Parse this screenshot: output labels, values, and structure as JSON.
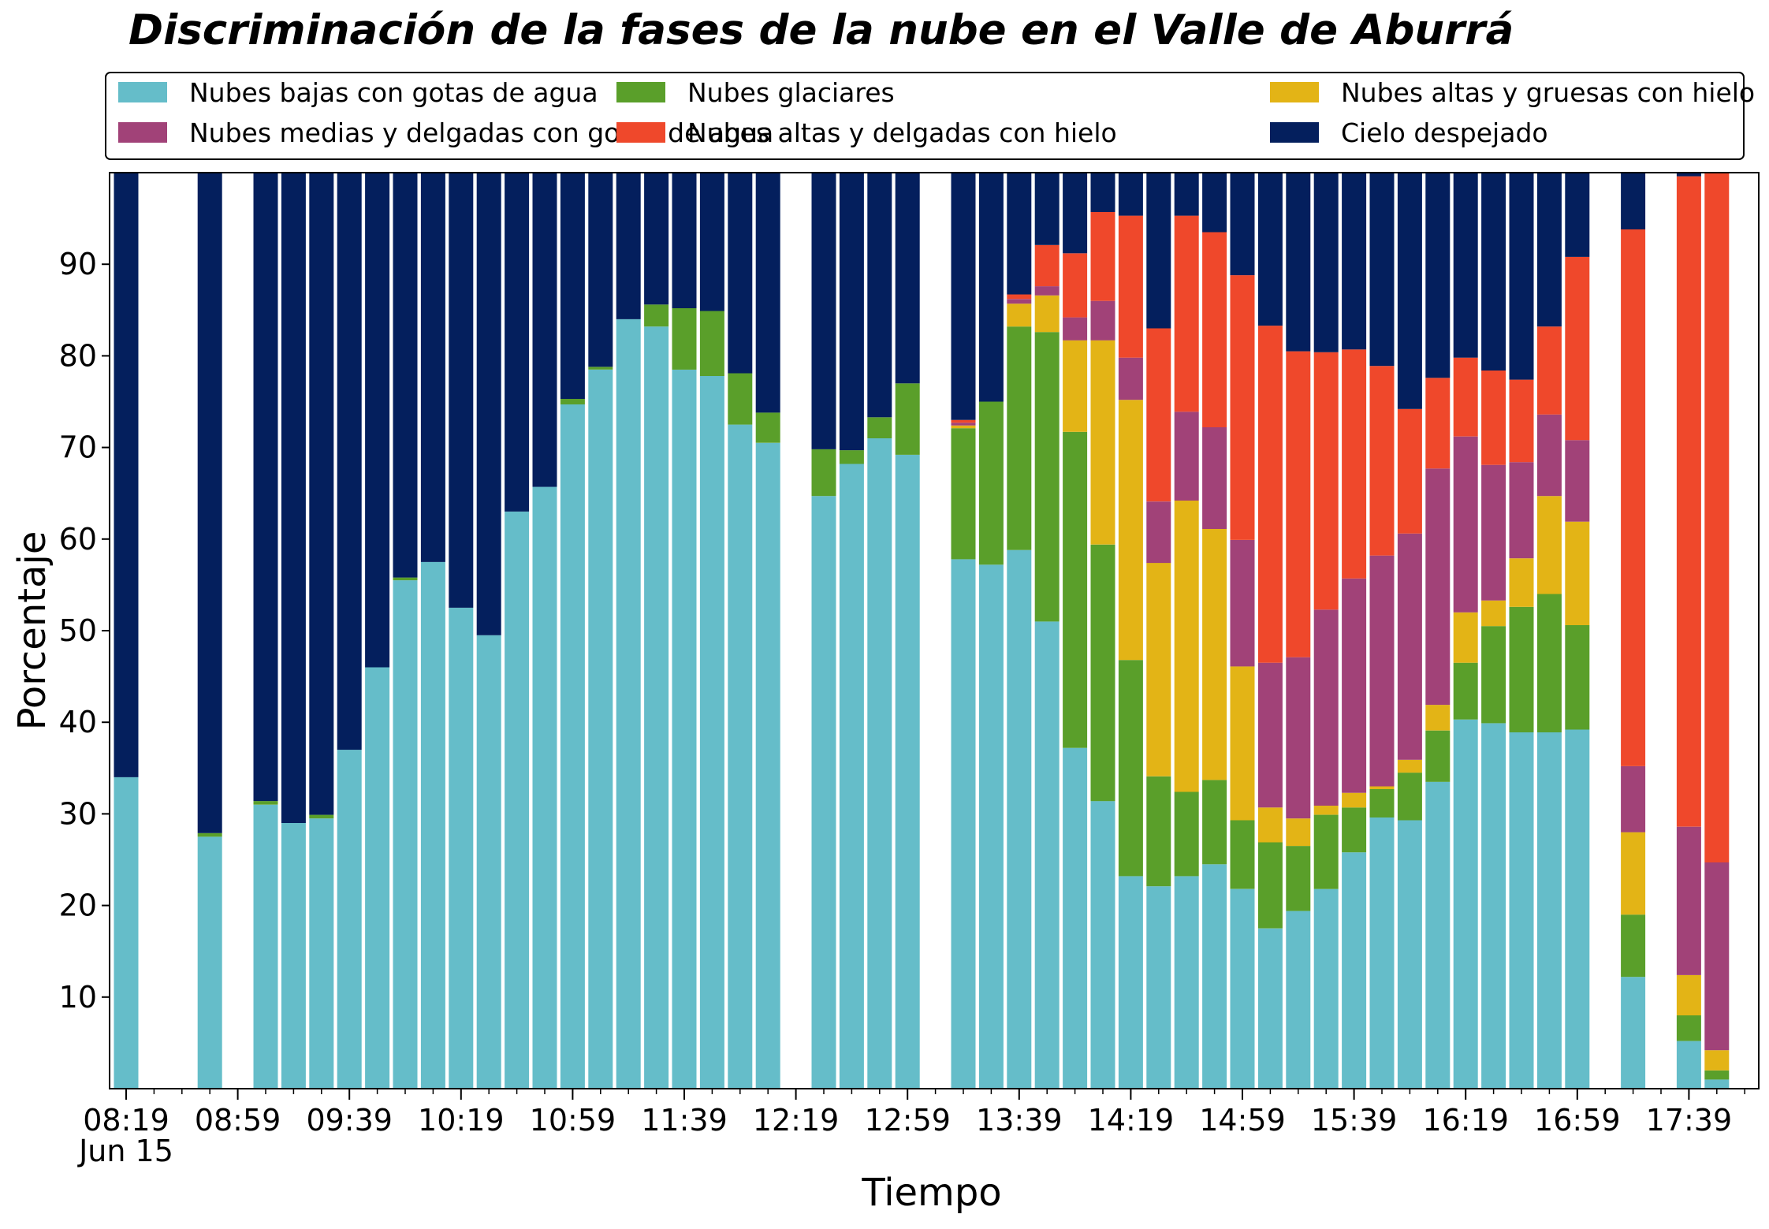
{
  "chart_data": {
    "type": "bar",
    "stacked": true,
    "title": "Discriminación de la fases de la nube en el Valle de Aburrá",
    "xlabel": "Tiempo",
    "ylabel": "Porcentaje",
    "ylim": [
      0,
      100
    ],
    "yticks": [
      10,
      20,
      30,
      40,
      50,
      60,
      70,
      80,
      90
    ],
    "x_ticks": [
      {
        "index": 0,
        "label": "08:19"
      },
      {
        "index": 4,
        "label": "08:59"
      },
      {
        "index": 8,
        "label": "09:39"
      },
      {
        "index": 12,
        "label": "10:19"
      },
      {
        "index": 16,
        "label": "10:59"
      },
      {
        "index": 20,
        "label": "11:39"
      },
      {
        "index": 24,
        "label": "12:19"
      },
      {
        "index": 28,
        "label": "12:59"
      },
      {
        "index": 32,
        "label": "13:39"
      },
      {
        "index": 36,
        "label": "14:19"
      },
      {
        "index": 40,
        "label": "14:59"
      },
      {
        "index": 44,
        "label": "15:39"
      },
      {
        "index": 48,
        "label": "16:19"
      },
      {
        "index": 52,
        "label": "16:59"
      },
      {
        "index": 56,
        "label": "17:39"
      }
    ],
    "x_sublabel": "Jun 15",
    "slots": 59,
    "grid": false,
    "legend_position": "top",
    "series": [
      {
        "name": "Nubes bajas con gotas de agua",
        "color": "#65bdc9"
      },
      {
        "name": "Nubes glaciares",
        "color": "#5a9f2a"
      },
      {
        "name": "Nubes altas y gruesas con hielo",
        "color": "#e3b416"
      },
      {
        "name": "Nubes medias y delgadas con gotas de agua",
        "color": "#a14278"
      },
      {
        "name": "Nubes altas y delgadas con hielo",
        "color": "#ef482b"
      },
      {
        "name": "Cielo despejado",
        "color": "#041f5d"
      }
    ],
    "bars": [
      {
        "slot": 0,
        "values": [
          34,
          0,
          0,
          0,
          0,
          66
        ]
      },
      {
        "slot": 3,
        "values": [
          27.5,
          0.4,
          0,
          0,
          0,
          72.1
        ]
      },
      {
        "slot": 5,
        "values": [
          31,
          0.4,
          0,
          0,
          0,
          68.6
        ]
      },
      {
        "slot": 6,
        "values": [
          29,
          0,
          0,
          0,
          0,
          71
        ]
      },
      {
        "slot": 7,
        "values": [
          29.5,
          0.4,
          0,
          0,
          0,
          70.1
        ]
      },
      {
        "slot": 8,
        "values": [
          37,
          0,
          0,
          0,
          0,
          63
        ]
      },
      {
        "slot": 9,
        "values": [
          46,
          0,
          0,
          0,
          0,
          54
        ]
      },
      {
        "slot": 10,
        "values": [
          55.5,
          0.3,
          0,
          0,
          0,
          44.2
        ]
      },
      {
        "slot": 11,
        "values": [
          57.5,
          0,
          0,
          0,
          0,
          42.5
        ]
      },
      {
        "slot": 12,
        "values": [
          52.5,
          0,
          0,
          0,
          0,
          47.5
        ]
      },
      {
        "slot": 13,
        "values": [
          49.5,
          0,
          0,
          0,
          0,
          50.5
        ]
      },
      {
        "slot": 14,
        "values": [
          63,
          0,
          0,
          0,
          0,
          37
        ]
      },
      {
        "slot": 15,
        "values": [
          65.7,
          0,
          0,
          0,
          0,
          34.3
        ]
      },
      {
        "slot": 16,
        "values": [
          74.7,
          0.6,
          0,
          0,
          0,
          24.7
        ]
      },
      {
        "slot": 17,
        "values": [
          78.5,
          0.3,
          0,
          0,
          0,
          21.2
        ]
      },
      {
        "slot": 18,
        "values": [
          84,
          0,
          0,
          0,
          0,
          16
        ]
      },
      {
        "slot": 19,
        "values": [
          83.2,
          2.4,
          0,
          0,
          0,
          14.4
        ]
      },
      {
        "slot": 20,
        "values": [
          78.5,
          6.7,
          0,
          0,
          0,
          14.8
        ]
      },
      {
        "slot": 21,
        "values": [
          77.8,
          7.1,
          0,
          0,
          0,
          15.1
        ]
      },
      {
        "slot": 22,
        "values": [
          72.5,
          5.6,
          0,
          0,
          0,
          21.9
        ]
      },
      {
        "slot": 23,
        "values": [
          70.5,
          3.3,
          0,
          0,
          0,
          26.2
        ]
      },
      {
        "slot": 25,
        "values": [
          64.7,
          5.1,
          0,
          0,
          0,
          30.2
        ]
      },
      {
        "slot": 26,
        "values": [
          68.2,
          1.5,
          0,
          0,
          0,
          30.3
        ]
      },
      {
        "slot": 27,
        "values": [
          71,
          2.3,
          0,
          0,
          0,
          26.7
        ]
      },
      {
        "slot": 28,
        "values": [
          69.2,
          7.8,
          0,
          0,
          0,
          23
        ]
      },
      {
        "slot": 30,
        "values": [
          57.8,
          14.3,
          0.3,
          0.3,
          0.3,
          27
        ]
      },
      {
        "slot": 31,
        "values": [
          57.2,
          17.8,
          0,
          0,
          0,
          25
        ]
      },
      {
        "slot": 32,
        "values": [
          58.8,
          24.4,
          2.5,
          0.5,
          0.5,
          13.3
        ]
      },
      {
        "slot": 33,
        "values": [
          51,
          31.6,
          4,
          1,
          4.5,
          7.9
        ]
      },
      {
        "slot": 34,
        "values": [
          37.2,
          34.5,
          10,
          2.5,
          7,
          8.8
        ]
      },
      {
        "slot": 35,
        "values": [
          31.4,
          28,
          22.3,
          4.3,
          9.7,
          4.3
        ]
      },
      {
        "slot": 36,
        "values": [
          23.2,
          23.6,
          28.4,
          4.6,
          15.5,
          4.7
        ]
      },
      {
        "slot": 37,
        "values": [
          22.1,
          12,
          23.3,
          6.7,
          18.9,
          17
        ]
      },
      {
        "slot": 38,
        "values": [
          23.2,
          9.2,
          31.8,
          9.7,
          21.4,
          4.7
        ]
      },
      {
        "slot": 39,
        "values": [
          24.5,
          9.2,
          27.4,
          11.1,
          21.3,
          6.5
        ]
      },
      {
        "slot": 40,
        "values": [
          21.8,
          7.5,
          16.8,
          13.8,
          28.9,
          11.2
        ]
      },
      {
        "slot": 41,
        "values": [
          17.5,
          9.4,
          3.8,
          15.8,
          36.8,
          16.7
        ]
      },
      {
        "slot": 42,
        "values": [
          19.4,
          7.1,
          3,
          17.6,
          33.4,
          19.5
        ]
      },
      {
        "slot": 43,
        "values": [
          21.8,
          8.1,
          1,
          21.4,
          28.1,
          19.6
        ]
      },
      {
        "slot": 44,
        "values": [
          25.8,
          4.9,
          1.6,
          23.4,
          25,
          19.3
        ]
      },
      {
        "slot": 45,
        "values": [
          29.6,
          3.1,
          0.3,
          25.2,
          20.7,
          21.1
        ]
      },
      {
        "slot": 46,
        "values": [
          29.3,
          5.2,
          1.4,
          24.7,
          13.6,
          25.8
        ]
      },
      {
        "slot": 47,
        "values": [
          33.5,
          5.6,
          2.8,
          25.8,
          9.9,
          22.4
        ]
      },
      {
        "slot": 48,
        "values": [
          40.3,
          6.2,
          5.5,
          19.2,
          8.6,
          20.2
        ]
      },
      {
        "slot": 49,
        "values": [
          39.9,
          10.6,
          2.8,
          14.8,
          10.3,
          21.6
        ]
      },
      {
        "slot": 50,
        "values": [
          38.9,
          13.7,
          5.3,
          10.5,
          9,
          22.6
        ]
      },
      {
        "slot": 51,
        "values": [
          38.9,
          15.1,
          10.7,
          8.9,
          9.6,
          16.8
        ]
      },
      {
        "slot": 52,
        "values": [
          39.2,
          11.4,
          11.3,
          8.9,
          20,
          9.2
        ]
      },
      {
        "slot": 54,
        "values": [
          12.2,
          6.8,
          9,
          7.2,
          58.6,
          6.2
        ]
      },
      {
        "slot": 56,
        "values": [
          5.2,
          2.8,
          4.4,
          16.2,
          71,
          0.4
        ]
      },
      {
        "slot": 57,
        "values": [
          1,
          1,
          2.2,
          20.5,
          75.3,
          0
        ]
      }
    ]
  }
}
